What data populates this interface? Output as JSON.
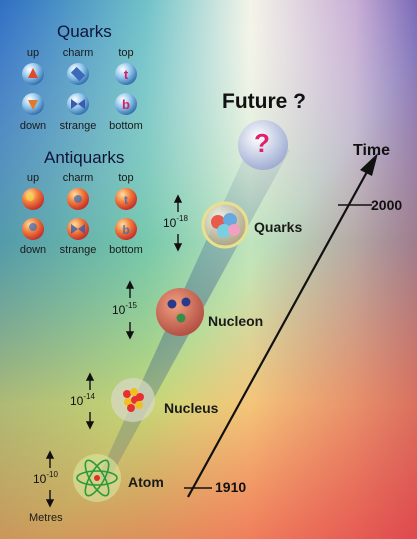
{
  "quarks": {
    "title": "Quarks",
    "top_row": [
      "up",
      "charm",
      "top"
    ],
    "bottom_row": [
      "down",
      "strange",
      "bottom"
    ],
    "glyphs_top": [
      "▲",
      "●",
      "t"
    ],
    "glyphs_bottom": [
      "▼",
      "⧗",
      "b"
    ]
  },
  "antiquarks": {
    "title": "Antiquarks",
    "top_row": [
      "up",
      "charm",
      "top"
    ],
    "bottom_row": [
      "down",
      "strange",
      "bottom"
    ]
  },
  "timeline": {
    "future_label": "Future ?",
    "question_mark": "?",
    "time_label": "Time",
    "year_top": "2000",
    "year_bottom": "1910"
  },
  "levels": [
    {
      "name": "Quarks",
      "base": "10",
      "exponent": "-18"
    },
    {
      "name": "Nucleon",
      "base": "10",
      "exponent": "-15"
    },
    {
      "name": "Nucleus",
      "base": "10",
      "exponent": "-14"
    },
    {
      "name": "Atom",
      "base": "10",
      "exponent": "-10"
    }
  ],
  "unit_label": "Metres",
  "colors": {
    "quark_ball": "#4aa0d8",
    "antiquark_ball": "#e8503a",
    "question_mark": "#e0206a",
    "text_dark": "#10143a"
  }
}
